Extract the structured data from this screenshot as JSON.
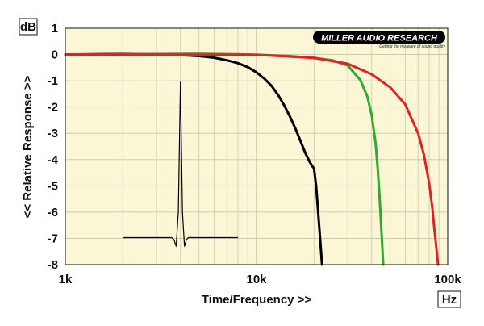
{
  "chart_data": {
    "type": "line",
    "title": "",
    "xlabel": "Time/Frequency >>",
    "ylabel": "<< Relative Response >>",
    "x_unit": "Hz",
    "y_unit": "dB",
    "x_scale": "log",
    "xlim": [
      1000,
      100000
    ],
    "ylim": [
      -8,
      1
    ],
    "x_tick_labels": [
      "1k",
      "10k",
      "100k"
    ],
    "y_tick_labels": [
      "1",
      "0",
      "-1",
      "-2",
      "-3",
      "-4",
      "-5",
      "-6",
      "-7",
      "-8"
    ],
    "grid": true,
    "legend": "none",
    "series": [
      {
        "color": "#000000",
        "x": [
          1000,
          2000,
          3000,
          4000,
          5000,
          6000,
          7000,
          8000,
          9000,
          10000,
          11000,
          12000,
          13000,
          14000,
          15000,
          16000,
          17000,
          18000,
          19000,
          20000,
          20500,
          21000,
          21500,
          22000
        ],
        "y": [
          0.0,
          0.02,
          0.01,
          -0.02,
          -0.06,
          -0.12,
          -0.22,
          -0.33,
          -0.48,
          -0.68,
          -0.92,
          -1.2,
          -1.55,
          -1.95,
          -2.38,
          -2.83,
          -3.3,
          -3.75,
          -4.1,
          -4.35,
          -5.0,
          -6.0,
          -7.0,
          -8.0
        ]
      },
      {
        "color": "#2eaa2e",
        "x": [
          1000,
          5000,
          8000,
          10000,
          15000,
          20000,
          25000,
          30000,
          35000,
          38000,
          40000,
          42000,
          43000,
          44000,
          45000,
          46000
        ],
        "y": [
          0.0,
          0.03,
          0.01,
          -0.01,
          -0.06,
          -0.13,
          -0.22,
          -0.42,
          -0.98,
          -1.6,
          -2.3,
          -3.4,
          -4.3,
          -5.4,
          -6.7,
          -8.0
        ]
      },
      {
        "color": "#e02222",
        "x": [
          1000,
          10000,
          20000,
          30000,
          40000,
          50000,
          60000,
          70000,
          75000,
          80000,
          83000,
          85000,
          87000,
          89000
        ],
        "y": [
          0.0,
          -0.01,
          -0.13,
          -0.35,
          -0.75,
          -1.25,
          -1.9,
          -3.0,
          -3.8,
          -4.9,
          -5.8,
          -6.6,
          -7.3,
          -8.0
        ]
      }
    ],
    "inset_impulse": {
      "color": "#000000",
      "x": [
        2000,
        3600,
        3700,
        3800,
        3900,
        4000,
        4100,
        4200,
        4300,
        4400,
        8000
      ],
      "y": [
        -6.97,
        -6.97,
        -7.05,
        -7.3,
        -6.0,
        -1.05,
        -6.0,
        -7.3,
        -7.05,
        -6.97,
        -6.97
      ]
    }
  },
  "brand": {
    "name": "MILLER AUDIO RESEARCH",
    "tagline": "Getting the measure of sound quality"
  }
}
